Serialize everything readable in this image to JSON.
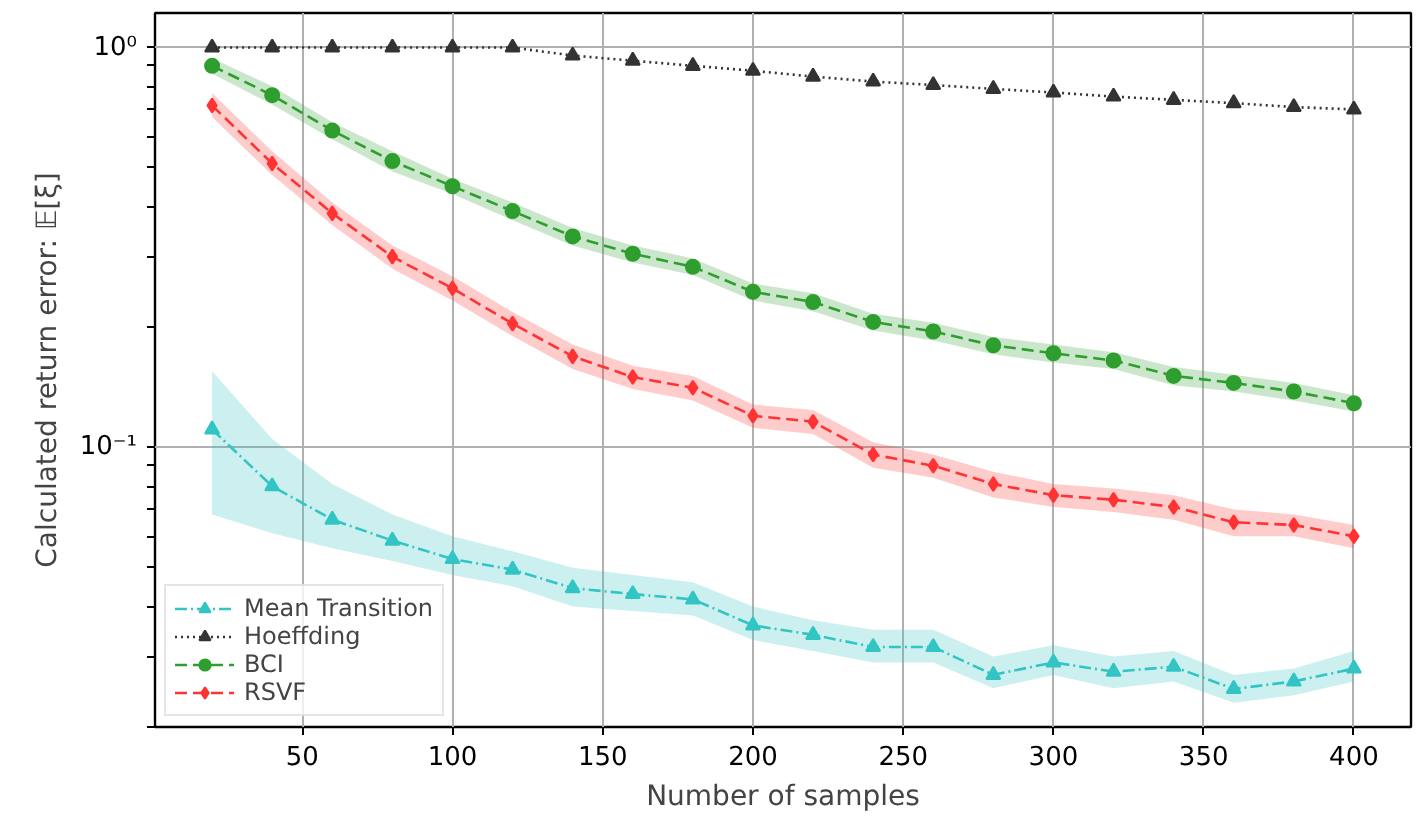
{
  "chart_data": {
    "type": "line",
    "xlabel": "Number of samples",
    "ylabel": "Calculated return error: 𝔼[ξ]",
    "x": [
      20,
      40,
      60,
      80,
      100,
      120,
      140,
      160,
      180,
      200,
      220,
      240,
      260,
      280,
      300,
      320,
      340,
      360,
      380,
      400
    ],
    "xlim": [
      1,
      419
    ],
    "xticks": [
      50,
      100,
      150,
      200,
      250,
      300,
      350,
      400
    ],
    "log": "y",
    "ylim": [
      0.02,
      1.22
    ],
    "yticks": [
      {
        "value": 0.02,
        "label": null
      },
      {
        "value": 0.03,
        "label": null
      },
      {
        "value": 0.04,
        "label": null
      },
      {
        "value": 0.05,
        "label": null
      },
      {
        "value": 0.06,
        "label": null
      },
      {
        "value": 0.07,
        "label": null
      },
      {
        "value": 0.08,
        "label": null
      },
      {
        "value": 0.09,
        "label": null
      },
      {
        "value": 0.1,
        "label": "10⁻¹"
      },
      {
        "value": 0.2,
        "label": null
      },
      {
        "value": 0.3,
        "label": null
      },
      {
        "value": 0.4,
        "label": null
      },
      {
        "value": 0.5,
        "label": null
      },
      {
        "value": 0.6,
        "label": null
      },
      {
        "value": 0.7,
        "label": null
      },
      {
        "value": 0.8,
        "label": null
      },
      {
        "value": 0.9,
        "label": null
      },
      {
        "value": 1,
        "label": "10⁰"
      }
    ],
    "grid": true,
    "legend": "bottom left",
    "series": [
      {
        "name": "Mean Transition",
        "color": "#33c4c4",
        "marker": "triangle",
        "line_style": "dashdot",
        "values": [
          0.111,
          0.08,
          0.066,
          0.0585,
          0.0526,
          0.0495,
          0.0445,
          0.043,
          0.0417,
          0.0359,
          0.034,
          0.0317,
          0.0317,
          0.027,
          0.029,
          0.0275,
          0.0283,
          0.0249,
          0.026,
          0.028
        ],
        "lower": [
          0.068,
          0.061,
          0.056,
          0.052,
          0.048,
          0.045,
          0.04,
          0.039,
          0.038,
          0.033,
          0.031,
          0.029,
          0.029,
          0.025,
          0.027,
          0.025,
          0.026,
          0.023,
          0.024,
          0.026
        ],
        "upper": [
          0.155,
          0.105,
          0.081,
          0.068,
          0.06,
          0.055,
          0.05,
          0.048,
          0.046,
          0.04,
          0.037,
          0.035,
          0.035,
          0.03,
          0.032,
          0.03,
          0.031,
          0.027,
          0.028,
          0.031
        ]
      },
      {
        "name": "Hoeffding",
        "color": "#333333",
        "marker": "triangle",
        "line_style": "dotted",
        "values": [
          1.0,
          1.0,
          1.0,
          1.0,
          1.0,
          1.0,
          0.955,
          0.927,
          0.9,
          0.875,
          0.846,
          0.822,
          0.806,
          0.788,
          0.772,
          0.754,
          0.74,
          0.726,
          0.71,
          0.7
        ]
      },
      {
        "name": "BCI",
        "color": "#2e9e2e",
        "marker": "circle",
        "line_style": "dashed",
        "values": [
          0.9,
          0.76,
          0.62,
          0.52,
          0.45,
          0.39,
          0.337,
          0.305,
          0.283,
          0.245,
          0.231,
          0.206,
          0.195,
          0.18,
          0.172,
          0.165,
          0.151,
          0.145,
          0.138,
          0.129
        ],
        "lower": [
          0.86,
          0.72,
          0.59,
          0.49,
          0.43,
          0.37,
          0.32,
          0.29,
          0.27,
          0.233,
          0.219,
          0.196,
          0.185,
          0.171,
          0.163,
          0.157,
          0.143,
          0.138,
          0.131,
          0.123
        ],
        "upper": [
          0.94,
          0.8,
          0.65,
          0.55,
          0.47,
          0.41,
          0.354,
          0.32,
          0.297,
          0.257,
          0.243,
          0.216,
          0.205,
          0.189,
          0.181,
          0.173,
          0.159,
          0.152,
          0.145,
          0.135
        ]
      },
      {
        "name": "RSVF",
        "color": "#ff3333",
        "marker": "diamond",
        "line_style": "dashed",
        "values": [
          0.716,
          0.513,
          0.385,
          0.3,
          0.25,
          0.204,
          0.169,
          0.15,
          0.141,
          0.12,
          0.116,
          0.096,
          0.09,
          0.081,
          0.076,
          0.074,
          0.071,
          0.065,
          0.064,
          0.06
        ],
        "lower": [
          0.67,
          0.48,
          0.36,
          0.28,
          0.233,
          0.19,
          0.157,
          0.14,
          0.131,
          0.112,
          0.108,
          0.089,
          0.084,
          0.075,
          0.071,
          0.069,
          0.066,
          0.06,
          0.06,
          0.056
        ],
        "upper": [
          0.77,
          0.55,
          0.41,
          0.32,
          0.268,
          0.218,
          0.181,
          0.16,
          0.151,
          0.128,
          0.124,
          0.103,
          0.096,
          0.087,
          0.081,
          0.079,
          0.076,
          0.07,
          0.068,
          0.064
        ]
      }
    ]
  }
}
